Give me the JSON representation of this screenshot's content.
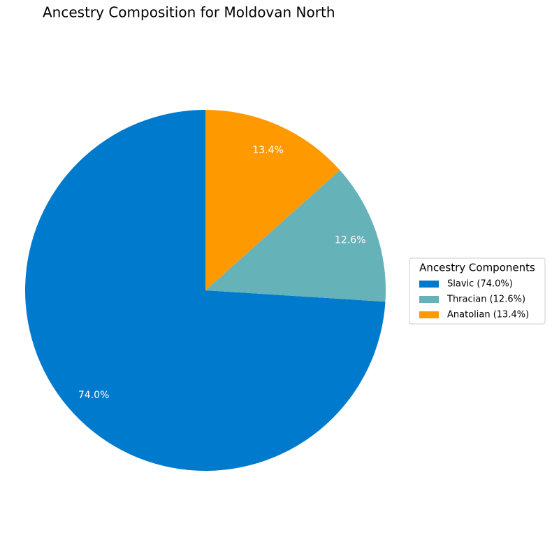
{
  "chart_data": {
    "type": "pie",
    "title": "Ancestry Composition for Moldovan North",
    "legend_title": "Ancestry Components",
    "categories": [
      "Slavic (74.0%)",
      "Thracian (12.6%)",
      "Anatolian (13.4%)"
    ],
    "values": [
      74.0,
      12.6,
      13.4
    ],
    "value_labels": [
      "74.0%",
      "12.6%",
      "13.4%"
    ],
    "colors": [
      "#007acc",
      "#66b2b9",
      "#ff9900"
    ],
    "legend": "right"
  }
}
